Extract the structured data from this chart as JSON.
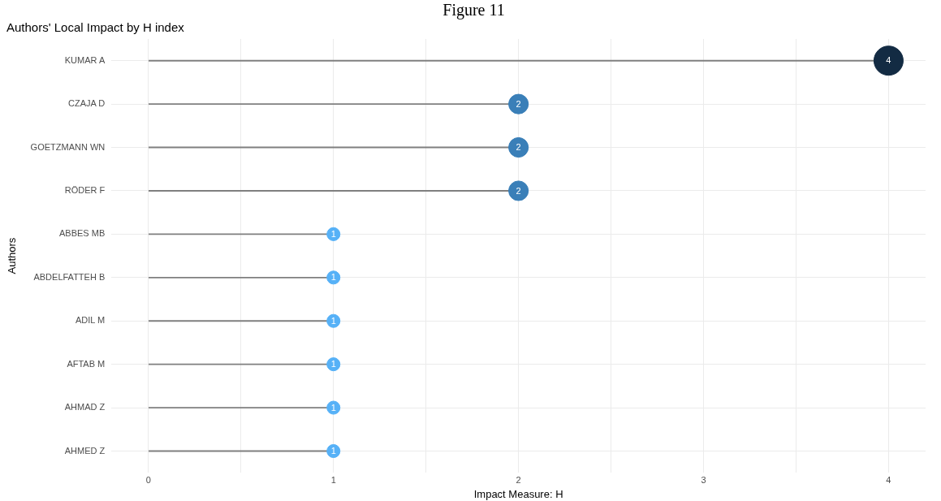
{
  "chart_data": {
    "type": "lollipop",
    "title": "Figure 11",
    "subtitle": "Authors' Local Impact by H index",
    "xlabel": "Impact Measure: H",
    "ylabel": "Authors",
    "orientation": "horizontal",
    "categories": [
      "KUMAR A",
      "CZAJA D",
      "GOETZMANN WN",
      "RÖDER F",
      "ABBES MB",
      "ABDELFATTEH B",
      "ADIL M",
      "AFTAB M",
      "AHMAD Z",
      "AHMED Z"
    ],
    "values": [
      4,
      2,
      2,
      2,
      1,
      1,
      1,
      1,
      1,
      1
    ],
    "colors": [
      "#132b43",
      "#3a7fb8",
      "#3a7fb8",
      "#3a7fb8",
      "#56b1f7",
      "#56b1f7",
      "#56b1f7",
      "#56b1f7",
      "#56b1f7",
      "#56b1f7"
    ],
    "sizes": [
      1,
      0.45,
      0.45,
      0.45,
      0.2,
      0.2,
      0.2,
      0.2,
      0.2,
      0.2
    ],
    "xlim": [
      -0.2,
      4.2
    ],
    "xticks": [
      0,
      {
        "value": 0.5,
        "label": null
      },
      1,
      {
        "value": 1.5,
        "label": null
      },
      2,
      {
        "value": 2.5,
        "label": null
      },
      3,
      {
        "value": 3.5,
        "label": null
      },
      4
    ],
    "grid": true,
    "legend": false,
    "data_labels": true,
    "marker": "circle"
  }
}
